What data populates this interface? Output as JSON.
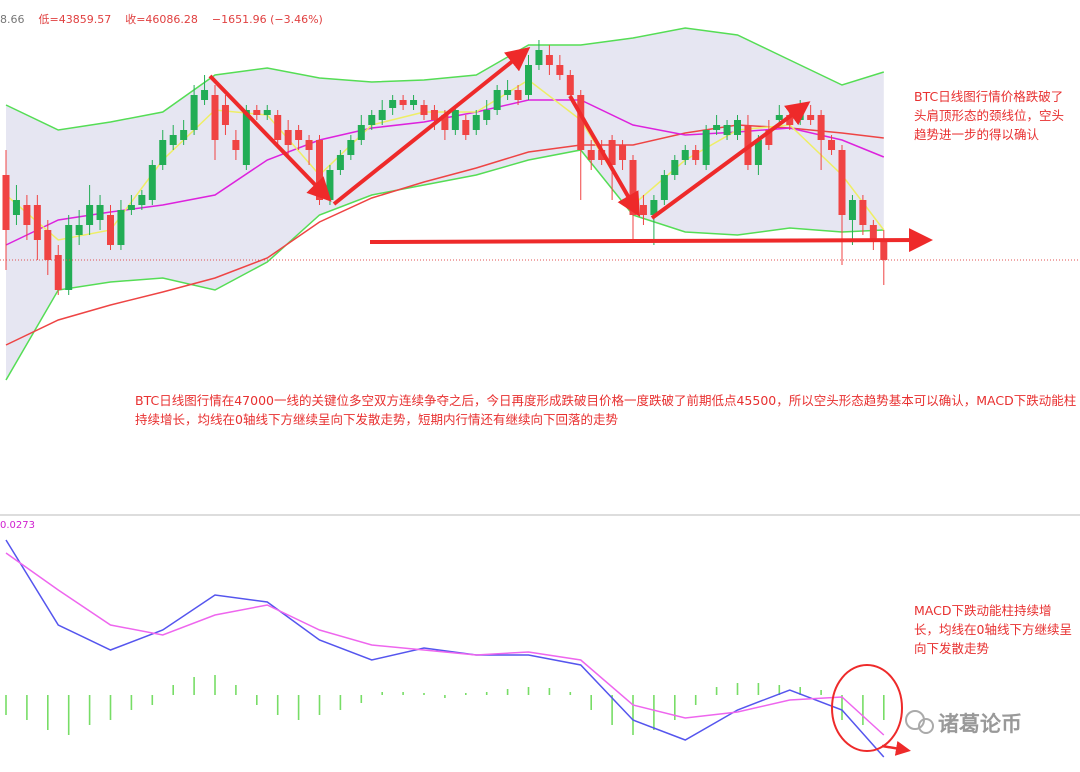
{
  "header": {
    "items": [
      "8.66",
      "低=43859.57",
      "收=46086.28",
      "−1651.96 (−3.46%)"
    ]
  },
  "chart_data": [
    {
      "type": "candlestick",
      "ylim": [
        20500,
        72000
      ],
      "up_color": "#22ad55",
      "down_color": "#f04343",
      "fill": "#e6e6f2",
      "ohlc": [
        [
          54500,
          57000,
          45000,
          49000
        ],
        [
          50500,
          53500,
          49500,
          52000
        ],
        [
          51500,
          52500,
          48000,
          49500
        ],
        [
          51500,
          52500,
          46000,
          48000
        ],
        [
          49000,
          50000,
          44500,
          46000
        ],
        [
          46500,
          47500,
          42500,
          43000
        ],
        [
          43000,
          50500,
          42500,
          49500
        ],
        [
          48500,
          51000,
          47500,
          49500
        ],
        [
          49500,
          53500,
          48500,
          51500
        ],
        [
          50000,
          52500,
          49000,
          51500
        ],
        [
          50500,
          51500,
          47000,
          47500
        ],
        [
          47500,
          52000,
          47000,
          51000
        ],
        [
          51000,
          52500,
          50500,
          51500
        ],
        [
          51500,
          53000,
          51000,
          52500
        ],
        [
          52000,
          56000,
          51500,
          55500
        ],
        [
          55500,
          59000,
          55000,
          58000
        ],
        [
          57500,
          59500,
          57000,
          58500
        ],
        [
          58000,
          60000,
          57500,
          59000
        ],
        [
          59000,
          63500,
          58500,
          62500
        ],
        [
          62000,
          64500,
          61500,
          63000
        ],
        [
          62500,
          63500,
          56000,
          58000
        ],
        [
          61500,
          62500,
          58500,
          59500
        ],
        [
          58000,
          59000,
          56000,
          57000
        ],
        [
          55500,
          61500,
          55000,
          61000
        ],
        [
          61000,
          61500,
          60000,
          60500
        ],
        [
          60500,
          61500,
          60000,
          61000
        ],
        [
          60500,
          61000,
          57500,
          58000
        ],
        [
          59000,
          60000,
          56500,
          57500
        ],
        [
          59000,
          59500,
          57000,
          58000
        ],
        [
          58000,
          58500,
          55500,
          57000
        ],
        [
          58000,
          58500,
          51500,
          52000
        ],
        [
          52000,
          55500,
          51500,
          55000
        ],
        [
          55000,
          57000,
          54500,
          56500
        ],
        [
          56500,
          58500,
          56000,
          58000
        ],
        [
          58000,
          60500,
          57500,
          59500
        ],
        [
          59500,
          61000,
          59000,
          60500
        ],
        [
          60000,
          62000,
          59500,
          61000
        ],
        [
          61200,
          62500,
          60500,
          62000
        ],
        [
          62000,
          62500,
          61000,
          61500
        ],
        [
          61500,
          62500,
          61000,
          62000
        ],
        [
          61500,
          62000,
          60000,
          60500
        ],
        [
          61000,
          61500,
          59000,
          60000
        ],
        [
          60500,
          61000,
          58000,
          59000
        ],
        [
          59000,
          61500,
          58500,
          61000
        ],
        [
          60000,
          60500,
          58000,
          58500
        ],
        [
          59000,
          61000,
          58500,
          60500
        ],
        [
          60000,
          62000,
          59500,
          61000
        ],
        [
          61000,
          63500,
          60500,
          63000
        ],
        [
          62500,
          64000,
          62000,
          63000
        ],
        [
          63000,
          63500,
          61500,
          62000
        ],
        [
          62500,
          66500,
          62000,
          65500
        ],
        [
          65500,
          68000,
          65000,
          67000
        ],
        [
          66500,
          67500,
          64500,
          65500
        ],
        [
          65500,
          66500,
          64000,
          64500
        ],
        [
          64500,
          65000,
          62000,
          62500
        ],
        [
          62500,
          63000,
          52000,
          57000
        ],
        [
          57000,
          58000,
          55000,
          56000
        ],
        [
          57000,
          58000,
          55500,
          56000
        ],
        [
          58000,
          58500,
          52000,
          55500
        ],
        [
          57500,
          58000,
          55000,
          56000
        ],
        [
          56000,
          56500,
          48000,
          50500
        ],
        [
          51500,
          52500,
          49500,
          50500
        ],
        [
          50500,
          52500,
          47500,
          52000
        ],
        [
          52000,
          55000,
          51500,
          54500
        ],
        [
          54500,
          56500,
          54000,
          56000
        ],
        [
          56000,
          57500,
          55500,
          57000
        ],
        [
          57000,
          57500,
          55500,
          56000
        ],
        [
          55500,
          59500,
          55000,
          59000
        ],
        [
          59000,
          60500,
          58500,
          59500
        ],
        [
          58500,
          60000,
          58000,
          59500
        ],
        [
          58500,
          60500,
          58000,
          60000
        ],
        [
          59500,
          60500,
          55000,
          55500
        ],
        [
          55500,
          58500,
          54500,
          58000
        ],
        [
          59000,
          60000,
          57000,
          57500
        ],
        [
          60000,
          61500,
          59500,
          60500
        ],
        [
          60500,
          61500,
          59000,
          59500
        ],
        [
          60000,
          62000,
          59500,
          61000
        ],
        [
          60500,
          61500,
          59500,
          60000
        ],
        [
          60500,
          61000,
          55000,
          58000
        ],
        [
          58000,
          58500,
          56500,
          57000
        ],
        [
          57000,
          57500,
          45500,
          50500
        ],
        [
          50000,
          52500,
          47500,
          52000
        ],
        [
          52000,
          52500,
          48500,
          49500
        ],
        [
          49500,
          50000,
          47000,
          48000
        ],
        [
          48000,
          49000,
          43500,
          46000
        ]
      ],
      "line_x": [
        0,
        5,
        10,
        15,
        20,
        25,
        30,
        35,
        40,
        45,
        50,
        55,
        60,
        65,
        70,
        75,
        80,
        84
      ],
      "lines": [
        {
          "color": "#55dd55",
          "values": [
            61500,
            59000,
            59800,
            60800,
            64500,
            65200,
            64200,
            63800,
            64000,
            64500,
            67500,
            67500,
            68200,
            69200,
            68500,
            66000,
            63500,
            64800
          ]
        },
        {
          "color": "#55dd55",
          "values": [
            34000,
            43000,
            43800,
            44200,
            43000,
            45800,
            50500,
            52500,
            53500,
            54500,
            56000,
            57000,
            50500,
            48800,
            48500,
            49200,
            48800,
            49000
          ]
        },
        {
          "color": "#ee4444",
          "values": [
            37500,
            40000,
            41500,
            42800,
            44200,
            46200,
            49800,
            52200,
            53800,
            55200,
            56800,
            57500,
            57500,
            58700,
            59500,
            59200,
            58700,
            58200
          ]
        },
        {
          "color": "#dd22dd",
          "values": [
            47500,
            50000,
            50800,
            51500,
            52500,
            56000,
            58000,
            59200,
            59800,
            60800,
            62000,
            62000,
            59500,
            58500,
            58800,
            59200,
            58000,
            56300
          ]
        },
        {
          "color": "#eeee66",
          "values": [
            52500,
            48000,
            49000,
            56000,
            61000,
            60500,
            54500,
            59500,
            60800,
            60800,
            64000,
            60000,
            51500,
            56000,
            59000,
            59500,
            54500,
            49000
          ]
        }
      ]
    },
    {
      "type": "macd",
      "label": "0.0273",
      "ylim": [
        -770,
        1750
      ],
      "hist_color": "#77dd66",
      "line_x": [
        0,
        5,
        10,
        15,
        20,
        25,
        30,
        35,
        40,
        45,
        50,
        55,
        60,
        65,
        70,
        75,
        80,
        84
      ],
      "series": [
        {
          "color": "#5555ee",
          "values": [
            1550,
            700,
            450,
            650,
            1000,
            930,
            550,
            350,
            470,
            400,
            400,
            300,
            -250,
            -450,
            -150,
            50,
            -150,
            -620
          ]
        },
        {
          "color": "#ee66ee",
          "values": [
            1420,
            1050,
            700,
            600,
            800,
            900,
            650,
            500,
            450,
            400,
            430,
            350,
            -100,
            -230,
            -170,
            -50,
            -20,
            -400
          ]
        }
      ],
      "hist_x": [
        0,
        2,
        4,
        6,
        8,
        10,
        12,
        14,
        16,
        18,
        20,
        22,
        24,
        26,
        28,
        30,
        32,
        34,
        36,
        38,
        40,
        42,
        44,
        46,
        48,
        50,
        52,
        54,
        56,
        58,
        60,
        62,
        64,
        66,
        68,
        70,
        72,
        74,
        76,
        78,
        80,
        82,
        84
      ],
      "hist": [
        -200,
        -250,
        -350,
        -400,
        -300,
        -250,
        -150,
        -100,
        100,
        180,
        200,
        100,
        -100,
        -200,
        -250,
        -200,
        -150,
        -80,
        30,
        30,
        20,
        -30,
        20,
        30,
        60,
        80,
        70,
        30,
        -150,
        -300,
        -400,
        -350,
        -250,
        -100,
        80,
        120,
        120,
        100,
        80,
        50,
        -250,
        -300,
        -250
      ]
    }
  ],
  "annotations": [
    "BTC日线图行情价格跌破了头肩顶形态的颈线位，空头趋势进一步的得以确认",
    "BTC日线图行情在47000一线的关键位多空双方连续争夺之后，今日再度形成跌破目价格一度跌破了前期低点45500，所以空头形态趋势基本可以确认，MACD下跌动能柱持续增长，均线在0轴线下方继续呈向下发散走势，短期内行情还有继续向下回落的走势",
    "MACD下跌动能柱持续增长，均线在0轴线下方继续呈向下发散走势"
  ],
  "watermark": "诸葛论币"
}
